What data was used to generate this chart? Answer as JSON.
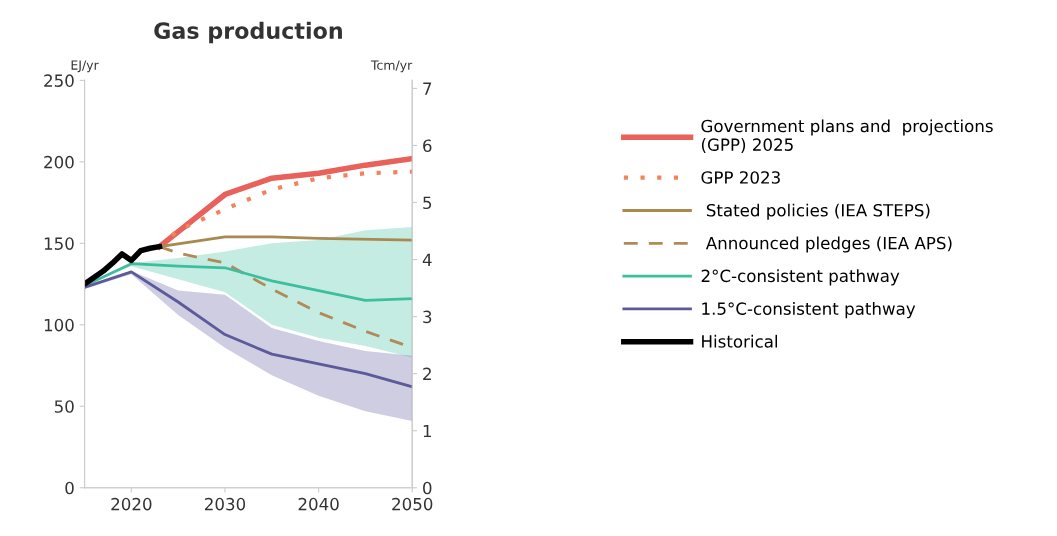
{
  "chart_data": {
    "type": "line",
    "title": "Gas production",
    "ylabel": "EJ/yr",
    "y2label": "Tcm/yr",
    "xlim": [
      2015,
      2050
    ],
    "xticks": [
      2020,
      2030,
      2040,
      2050
    ],
    "ylim": [
      0,
      250
    ],
    "yticks": [
      0,
      50,
      100,
      150,
      200,
      250
    ],
    "y2lim": [
      0,
      7.14
    ],
    "y2ticks": [
      0,
      1,
      2,
      3,
      4,
      5,
      6,
      7
    ],
    "grid": false,
    "legend": "right",
    "marker": "none",
    "series": [
      {
        "name": "Government plans and  projections\n(GPP) 2025",
        "color": "#e8615a",
        "line_style": "solid",
        "x": [
          2023,
          2030,
          2035,
          2040,
          2045,
          2050
        ],
        "values": [
          148,
          180,
          190,
          193,
          198,
          202
        ]
      },
      {
        "name": "GPP 2023",
        "color": "#f0855d",
        "line_style": "dotted",
        "x": [
          2023,
          2025,
          2030,
          2035,
          2040,
          2045,
          2050
        ],
        "values": [
          148,
          158,
          171,
          183,
          190,
          193,
          194
        ]
      },
      {
        "name": " Stated policies (IEA STEPS)",
        "color": "#a88a50",
        "line_style": "solid",
        "x": [
          2023,
          2030,
          2035,
          2040,
          2050
        ],
        "values": [
          148,
          154,
          154,
          153,
          152
        ]
      },
      {
        "name": " Announced pledges (IEA APS)",
        "color": "#b08a58",
        "line_style": "dashed",
        "x": [
          2023,
          2025,
          2030,
          2035,
          2040,
          2045,
          2050
        ],
        "values": [
          148,
          144,
          138,
          122,
          107.5,
          96,
          86
        ]
      },
      {
        "name": "2°C-consistent pathway",
        "color": "#3dbf9f",
        "line_style": "solid",
        "x": [
          2015,
          2020,
          2025,
          2030,
          2035,
          2040,
          2045,
          2050
        ],
        "values": [
          124,
          137.5,
          136,
          135,
          127,
          121,
          115,
          116
        ],
        "lower": [
          124,
          136,
          128,
          120,
          100,
          92,
          87,
          80
        ],
        "upper": [
          124,
          138,
          141,
          145,
          150,
          152,
          158,
          160
        ]
      },
      {
        "name": "1.5°C-consistent pathway",
        "color": "#5c5a9a",
        "line_style": "solid",
        "x": [
          2015,
          2020,
          2025,
          2030,
          2035,
          2040,
          2045,
          2050
        ],
        "values": [
          123,
          132.5,
          114,
          94,
          82,
          76,
          70,
          62
        ],
        "lower": [
          122,
          131,
          106,
          86,
          69,
          56.5,
          47,
          41
        ],
        "upper": [
          123,
          133,
          121,
          118.5,
          98,
          90,
          84,
          81
        ]
      },
      {
        "name": "Historical",
        "color": "#000000",
        "line_style": "solid",
        "x": [
          2015,
          2016,
          2017,
          2018,
          2019,
          2020,
          2021,
          2022,
          2023
        ],
        "values": [
          125,
          129,
          133,
          138,
          143.5,
          139.5,
          145.5,
          147,
          148
        ]
      }
    ]
  }
}
